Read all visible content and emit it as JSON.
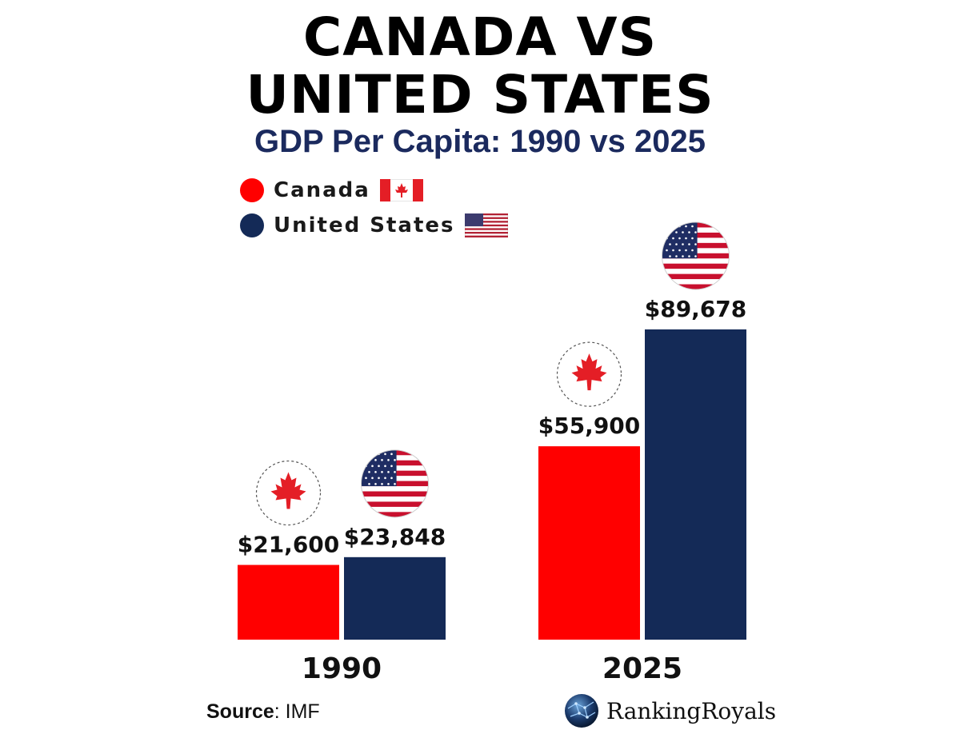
{
  "header": {
    "title_line1": "CANADA  VS",
    "title_line2": "UNITED STATES",
    "subtitle": "GDP Per Capita: 1990 vs 2025"
  },
  "legend": [
    {
      "label": "Canada",
      "color": "#ff0000",
      "icon": "canada-flag-icon"
    },
    {
      "label": "United States",
      "color": "#142a57",
      "icon": "usa-flag-icon"
    }
  ],
  "chart_data": {
    "type": "bar",
    "title": "GDP Per Capita: 1990 vs 2025",
    "categories": [
      "1990",
      "2025"
    ],
    "series": [
      {
        "name": "Canada",
        "color": "#ff0000",
        "values": [
          21600,
          55900
        ],
        "labels": [
          "$21,600",
          "$55,900"
        ]
      },
      {
        "name": "United States",
        "color": "#142a57",
        "values": [
          23848,
          89678
        ],
        "labels": [
          "$23,848",
          "$89,678"
        ]
      }
    ],
    "xlabel": "",
    "ylabel": "",
    "ylim": [
      0,
      89678
    ],
    "grid": false,
    "legend_position": "top-left"
  },
  "footer": {
    "source_label": "Source",
    "source_value": ": IMF",
    "brand": "RankingRoyals"
  }
}
